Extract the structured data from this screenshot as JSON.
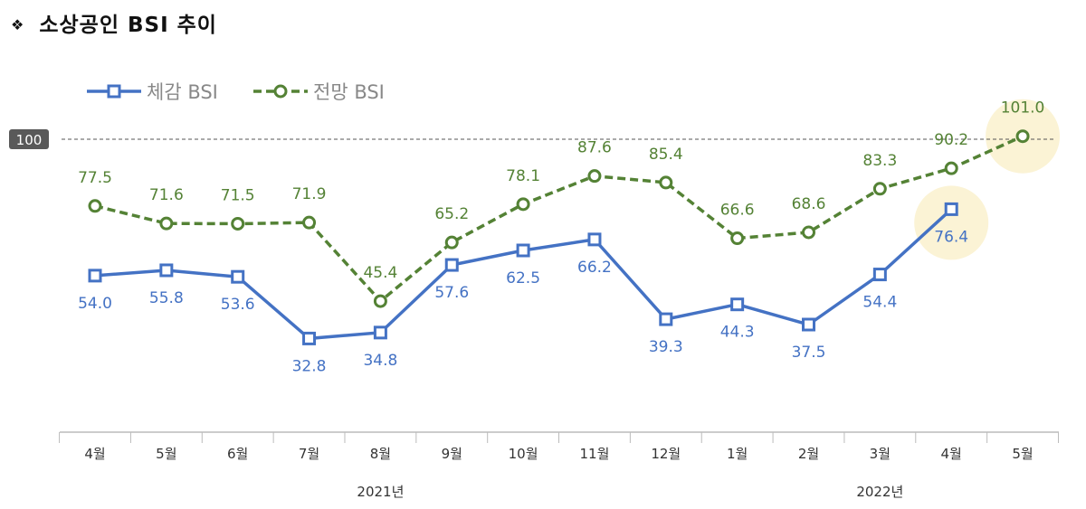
{
  "title": "소상공인  BSI  추이",
  "title_bullet": "❖",
  "chart_data": {
    "type": "line",
    "categories": [
      "4월",
      "5월",
      "6월",
      "7월",
      "8월",
      "9월",
      "10월",
      "11월",
      "12월",
      "1월",
      "2월",
      "3월",
      "4월",
      "5월"
    ],
    "year_groups": [
      {
        "label": "2021년",
        "span": [
          0,
          8
        ]
      },
      {
        "label": "2022년",
        "span": [
          9,
          13
        ]
      }
    ],
    "series": [
      {
        "name": "체감 BSI",
        "color": "#4472C4",
        "marker": "square",
        "line": "solid",
        "values": [
          54.0,
          55.8,
          53.6,
          32.8,
          34.8,
          57.6,
          62.5,
          66.2,
          39.3,
          44.3,
          37.5,
          54.4,
          76.4,
          null
        ]
      },
      {
        "name": "전망 BSI",
        "color": "#548235",
        "marker": "circle",
        "line": "dashed",
        "values": [
          77.5,
          71.6,
          71.5,
          71.9,
          45.4,
          65.2,
          78.1,
          87.6,
          85.4,
          66.6,
          68.6,
          83.3,
          90.2,
          101.0
        ]
      }
    ],
    "reference_line": {
      "value": 100,
      "label": "100",
      "style": "dashed"
    },
    "highlighted_points": [
      {
        "series": 0,
        "index": 12
      },
      {
        "series": 1,
        "index": 13
      }
    ],
    "highlight_color": "#FBF3D5",
    "ylim": [
      0,
      100
    ],
    "legend": "top-left",
    "grid": false
  }
}
